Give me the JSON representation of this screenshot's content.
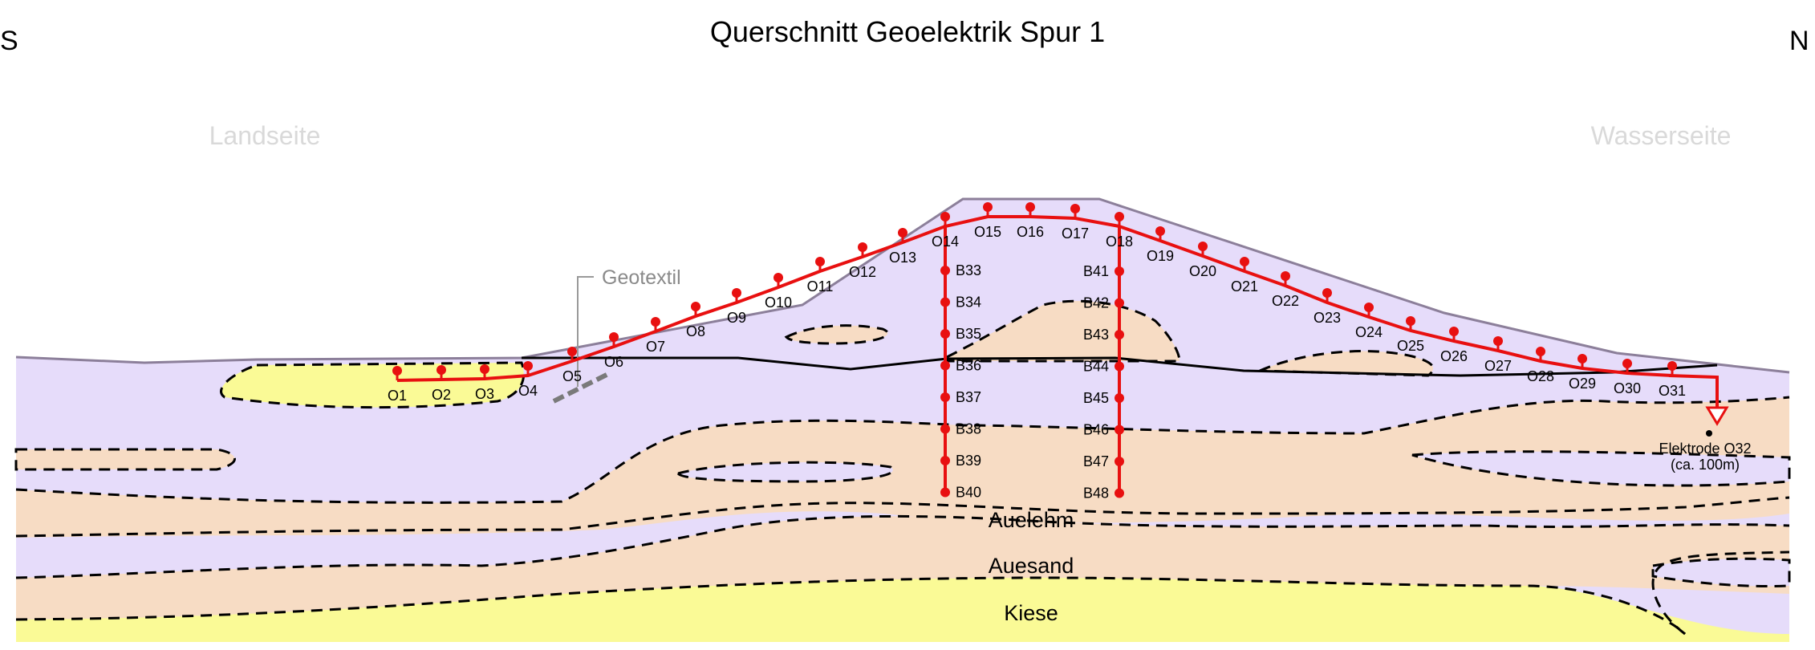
{
  "title": "Querschnitt Geoelektrik Spur 1",
  "orientation": {
    "left": "S",
    "right": "N"
  },
  "sides": {
    "left": "Landseite",
    "right": "Wasserseite"
  },
  "layers": {
    "auelehm": "Auelehm",
    "auesand": "Auesand",
    "kiese": "Kiese"
  },
  "geotextile_label": "Geotextil",
  "surface_electrodes": [
    "O1",
    "O2",
    "O3",
    "O4",
    "O5",
    "O6",
    "O7",
    "O8",
    "O9",
    "O10",
    "O11",
    "O12",
    "O13",
    "O14",
    "O15",
    "O16",
    "O17",
    "O18",
    "O19",
    "O20",
    "O21",
    "O22",
    "O23",
    "O24",
    "O25",
    "O26",
    "O27",
    "O28",
    "O29",
    "O30",
    "O31"
  ],
  "borehole_1_electrodes": [
    "B33",
    "B34",
    "B35",
    "B36",
    "B37",
    "B38",
    "B39",
    "B40"
  ],
  "borehole_2_electrodes": [
    "B41",
    "B42",
    "B43",
    "B44",
    "B45",
    "B46",
    "B47",
    "B48"
  ],
  "remote_electrode": {
    "label": "Elektrode O32",
    "note": "(ca. 100m)"
  },
  "colors": {
    "purple_clay": "#e6dcfa",
    "sand": "#f7dcc4",
    "gravel_yellow": "#fafa96",
    "dike_outline": "#8c7f9a",
    "electrode_red": "#e81010",
    "faint_label": "#d9d9d9"
  }
}
